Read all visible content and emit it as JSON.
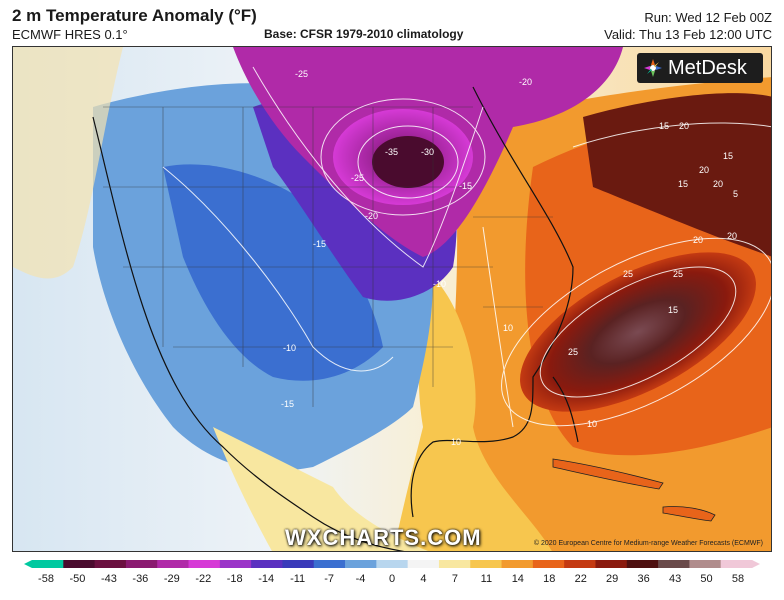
{
  "header": {
    "title": "2 m Temperature Anomaly (°F)",
    "model": "ECMWF HRES 0.1°",
    "base": "Base: CFSR 1979-2010 climatology",
    "run": "Run: Wed 12 Feb 00Z",
    "valid": "Valid: Thu 13 Feb 12:00 UTC"
  },
  "map": {
    "logo_text": "MetDesk",
    "watermark": "WXCHARTS.COM",
    "copyright": "© 2020 European Centre for Medium-range Weather Forecasts (ECMWF)",
    "contour_labels": [
      "-35",
      "-30",
      "-25",
      "-20",
      "-25",
      "-20",
      "-15",
      "-10",
      "-15",
      "-10",
      "-15",
      "10",
      "15",
      "20",
      "15",
      "20",
      "25",
      "20",
      "20",
      "25",
      "25",
      "15",
      "10",
      "5",
      "20",
      "15",
      "10"
    ]
  },
  "colorbar": {
    "labels": [
      "-58",
      "-50",
      "-43",
      "-36",
      "-29",
      "-22",
      "-18",
      "-14",
      "-11",
      "-7",
      "-4",
      "0",
      "4",
      "7",
      "11",
      "14",
      "18",
      "22",
      "29",
      "36",
      "43",
      "50",
      "58"
    ],
    "colors": [
      "#00c9a0",
      "#4a0b2e",
      "#6b1040",
      "#8a1a70",
      "#b02aa8",
      "#d63ad6",
      "#9a34c8",
      "#5b30c0",
      "#3a3aba",
      "#3b6fd0",
      "#6ba2dc",
      "#b8d6ee",
      "#f4f4f4",
      "#f8e7a0",
      "#f7c64e",
      "#f29a2e",
      "#e8641a",
      "#c43a12",
      "#8a1a0e",
      "#4e1010",
      "#6a4a4a",
      "#b08c8c",
      "#f0c8d8"
    ]
  }
}
